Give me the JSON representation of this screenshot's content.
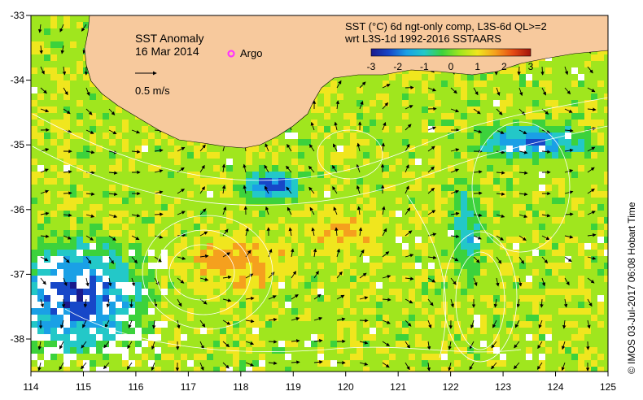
{
  "map": {
    "title_line1": "SST Anomaly",
    "title_line2": "16 Mar 2014",
    "vector_scale_label": "0.5 m/s",
    "argo_label": "Argo",
    "product_line1": "SST (°C) 6d ngt-only comp, L3S-6d QL>=2",
    "product_line2": "wrt L3S-1d 1992-2016 SSTAARS",
    "credit": "© IMOS 03-Jul-2017 06:08 Hobart Time",
    "x_ticks": [
      "114",
      "115",
      "116",
      "117",
      "118",
      "119",
      "120",
      "121",
      "122",
      "123",
      "124",
      "125"
    ],
    "y_ticks": [
      "-33",
      "-34",
      "-35",
      "-36",
      "-37",
      "-38"
    ],
    "colorbar_ticks": [
      "-3",
      "-2",
      "-1",
      "0",
      "1",
      "2",
      "3"
    ],
    "colors": {
      "land": "#f7c99d",
      "argo": "#ff33ff",
      "colormap": [
        "#1a1a8c",
        "#1747c8",
        "#1aa0e6",
        "#23c8c8",
        "#3cd23c",
        "#a0e61e",
        "#f0e61e",
        "#f5a01e",
        "#e64b14",
        "#a0140a"
      ]
    }
  }
}
